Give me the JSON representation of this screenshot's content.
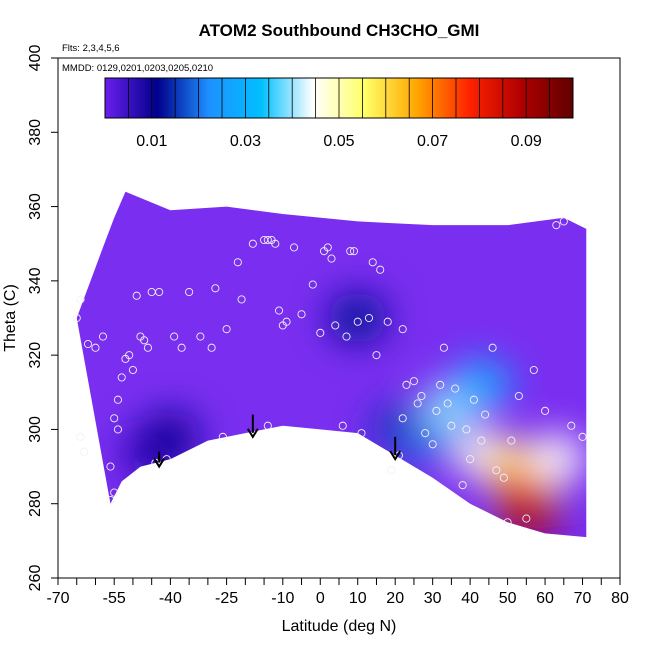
{
  "chart_data": {
    "type": "heatmap",
    "title": "ATOM2 Southbound CH3CHO_GMI",
    "flights_label": "Flts: 2,3,4,5,6",
    "dates_label": "MMDD: 0129,0201,0203,0205,0210",
    "xlabel": "Latitude (deg N)",
    "ylabel": "Theta (C)",
    "xlim": [
      -70,
      80
    ],
    "ylim": [
      260,
      400
    ],
    "x_ticks": [
      -70,
      -65,
      -60,
      -55,
      -50,
      -45,
      -40,
      -35,
      -30,
      -25,
      -20,
      -15,
      -10,
      -5,
      0,
      5,
      10,
      15,
      20,
      25,
      30,
      35,
      40,
      45,
      50,
      55,
      60,
      65,
      70,
      75,
      80
    ],
    "x_tick_labels": [
      "-70",
      "",
      "",
      "-55",
      "",
      "",
      "-40",
      "",
      "",
      "-25",
      "",
      "",
      "-10",
      "",
      "0",
      "",
      "10",
      "",
      "20",
      "",
      "30",
      "",
      "40",
      "",
      "50",
      "",
      "60",
      "",
      "70",
      "",
      "80"
    ],
    "y_ticks": [
      260,
      280,
      300,
      320,
      340,
      360,
      380,
      400
    ],
    "y_tick_labels": [
      "260",
      "280",
      "300",
      "320",
      "340",
      "360",
      "380",
      "400"
    ],
    "colorbar": {
      "range": [
        0,
        0.1
      ],
      "ticks": [
        0.01,
        0.03,
        0.05,
        0.07,
        0.09
      ],
      "tick_labels": [
        "0.01",
        "0.03",
        "0.05",
        "0.07",
        "0.09"
      ],
      "colors": [
        "#6a1fee",
        "#00008b",
        "#1e90ff",
        "#00bfff",
        "#ffffff",
        "#ffff66",
        "#ffa500",
        "#ff2200",
        "#b00000",
        "#600000"
      ]
    },
    "field": {
      "bg_color": "#7a2ff0",
      "blobs": [
        {
          "lat": -45,
          "theta": 293,
          "value": 0.007
        },
        {
          "lat": -40,
          "theta": 298,
          "value": 0.01
        },
        {
          "lat": 10,
          "theta": 330,
          "value": 0.012
        },
        {
          "lat": 22,
          "theta": 300,
          "value": 0.015
        },
        {
          "lat": 30,
          "theta": 298,
          "value": 0.02
        },
        {
          "lat": 35,
          "theta": 306,
          "value": 0.04
        },
        {
          "lat": 43,
          "theta": 312,
          "value": 0.03
        },
        {
          "lat": 44,
          "theta": 293,
          "value": 0.045
        },
        {
          "lat": 52,
          "theta": 290,
          "value": 0.06
        },
        {
          "lat": 55,
          "theta": 283,
          "value": 0.075
        },
        {
          "lat": 56,
          "theta": 278,
          "value": 0.088
        },
        {
          "lat": 63,
          "theta": 292,
          "value": 0.045
        }
      ]
    },
    "ground_profile": [
      {
        "lat": -56,
        "theta": 280
      },
      {
        "lat": -53,
        "theta": 286
      },
      {
        "lat": -48,
        "theta": 290
      },
      {
        "lat": -40,
        "theta": 292
      },
      {
        "lat": -30,
        "theta": 297
      },
      {
        "lat": -20,
        "theta": 299
      },
      {
        "lat": -10,
        "theta": 301
      },
      {
        "lat": 0,
        "theta": 300
      },
      {
        "lat": 10,
        "theta": 299
      },
      {
        "lat": 20,
        "theta": 293
      },
      {
        "lat": 30,
        "theta": 287
      },
      {
        "lat": 40,
        "theta": 280
      },
      {
        "lat": 50,
        "theta": 275
      },
      {
        "lat": 60,
        "theta": 272
      },
      {
        "lat": 71,
        "theta": 271
      }
    ],
    "top_profile": [
      {
        "lat": -65,
        "theta": 330
      },
      {
        "lat": -58,
        "theta": 349
      },
      {
        "lat": -55,
        "theta": 357
      },
      {
        "lat": -52,
        "theta": 364
      },
      {
        "lat": -40,
        "theta": 359
      },
      {
        "lat": -25,
        "theta": 360
      },
      {
        "lat": -10,
        "theta": 358
      },
      {
        "lat": 10,
        "theta": 356
      },
      {
        "lat": 30,
        "theta": 355
      },
      {
        "lat": 50,
        "theta": 355
      },
      {
        "lat": 65,
        "theta": 357
      },
      {
        "lat": 71,
        "theta": 354
      }
    ],
    "samples": [
      {
        "lat": -65,
        "theta": 330
      },
      {
        "lat": -64,
        "theta": 335
      },
      {
        "lat": -64,
        "theta": 298
      },
      {
        "lat": -63,
        "theta": 294
      },
      {
        "lat": -62,
        "theta": 323
      },
      {
        "lat": -60,
        "theta": 322
      },
      {
        "lat": -58,
        "theta": 325
      },
      {
        "lat": -56,
        "theta": 281
      },
      {
        "lat": -55,
        "theta": 283
      },
      {
        "lat": -56,
        "theta": 290
      },
      {
        "lat": -55,
        "theta": 303
      },
      {
        "lat": -54,
        "theta": 300
      },
      {
        "lat": -54,
        "theta": 308
      },
      {
        "lat": -53,
        "theta": 314
      },
      {
        "lat": -52,
        "theta": 319
      },
      {
        "lat": -51,
        "theta": 320
      },
      {
        "lat": -50,
        "theta": 316
      },
      {
        "lat": -49,
        "theta": 336
      },
      {
        "lat": -48,
        "theta": 325
      },
      {
        "lat": -47,
        "theta": 324
      },
      {
        "lat": -46,
        "theta": 322
      },
      {
        "lat": -45,
        "theta": 337
      },
      {
        "lat": -43,
        "theta": 337
      },
      {
        "lat": -44,
        "theta": 291
      },
      {
        "lat": -41,
        "theta": 292
      },
      {
        "lat": -39,
        "theta": 325
      },
      {
        "lat": -37,
        "theta": 322
      },
      {
        "lat": -35,
        "theta": 337
      },
      {
        "lat": -32,
        "theta": 325
      },
      {
        "lat": -29,
        "theta": 322
      },
      {
        "lat": -28,
        "theta": 338
      },
      {
        "lat": -26,
        "theta": 298
      },
      {
        "lat": -25,
        "theta": 327
      },
      {
        "lat": -22,
        "theta": 345
      },
      {
        "lat": -21,
        "theta": 335
      },
      {
        "lat": -18,
        "theta": 350
      },
      {
        "lat": -15,
        "theta": 351
      },
      {
        "lat": -14,
        "theta": 351
      },
      {
        "lat": -13,
        "theta": 351
      },
      {
        "lat": -12,
        "theta": 350
      },
      {
        "lat": -14,
        "theta": 301
      },
      {
        "lat": -10,
        "theta": 328
      },
      {
        "lat": -11,
        "theta": 332
      },
      {
        "lat": -9,
        "theta": 329
      },
      {
        "lat": -7,
        "theta": 349
      },
      {
        "lat": -5,
        "theta": 331
      },
      {
        "lat": -2,
        "theta": 339
      },
      {
        "lat": 0,
        "theta": 326
      },
      {
        "lat": 1,
        "theta": 348
      },
      {
        "lat": 2,
        "theta": 349
      },
      {
        "lat": 3,
        "theta": 346
      },
      {
        "lat": 4,
        "theta": 328
      },
      {
        "lat": 6,
        "theta": 301
      },
      {
        "lat": 7,
        "theta": 325
      },
      {
        "lat": 8,
        "theta": 348
      },
      {
        "lat": 9,
        "theta": 348
      },
      {
        "lat": 10,
        "theta": 329
      },
      {
        "lat": 11,
        "theta": 299
      },
      {
        "lat": 13,
        "theta": 330
      },
      {
        "lat": 14,
        "theta": 345
      },
      {
        "lat": 15,
        "theta": 320
      },
      {
        "lat": 16,
        "theta": 343
      },
      {
        "lat": 18,
        "theta": 329
      },
      {
        "lat": 19,
        "theta": 289
      },
      {
        "lat": 21,
        "theta": 293
      },
      {
        "lat": 22,
        "theta": 303
      },
      {
        "lat": 22,
        "theta": 327
      },
      {
        "lat": 23,
        "theta": 312
      },
      {
        "lat": 25,
        "theta": 313
      },
      {
        "lat": 26,
        "theta": 307
      },
      {
        "lat": 27,
        "theta": 309
      },
      {
        "lat": 28,
        "theta": 299
      },
      {
        "lat": 30,
        "theta": 296
      },
      {
        "lat": 31,
        "theta": 305
      },
      {
        "lat": 32,
        "theta": 312
      },
      {
        "lat": 33,
        "theta": 322
      },
      {
        "lat": 34,
        "theta": 307
      },
      {
        "lat": 35,
        "theta": 301
      },
      {
        "lat": 36,
        "theta": 311
      },
      {
        "lat": 38,
        "theta": 285
      },
      {
        "lat": 39,
        "theta": 300
      },
      {
        "lat": 40,
        "theta": 292
      },
      {
        "lat": 41,
        "theta": 308
      },
      {
        "lat": 43,
        "theta": 297
      },
      {
        "lat": 44,
        "theta": 304
      },
      {
        "lat": 46,
        "theta": 322
      },
      {
        "lat": 47,
        "theta": 289
      },
      {
        "lat": 49,
        "theta": 287
      },
      {
        "lat": 50,
        "theta": 275
      },
      {
        "lat": 51,
        "theta": 297
      },
      {
        "lat": 53,
        "theta": 309
      },
      {
        "lat": 55,
        "theta": 276
      },
      {
        "lat": 57,
        "theta": 316
      },
      {
        "lat": 60,
        "theta": 305
      },
      {
        "lat": 63,
        "theta": 355
      },
      {
        "lat": 65,
        "theta": 356
      },
      {
        "lat": 67,
        "theta": 301
      },
      {
        "lat": 70,
        "theta": 298
      }
    ],
    "arrows": [
      {
        "lat": -43,
        "theta_top": 294,
        "theta_bottom": 290
      },
      {
        "lat": -18,
        "theta_top": 304,
        "theta_bottom": 298
      },
      {
        "lat": 20,
        "theta_top": 298,
        "theta_bottom": 292
      }
    ]
  }
}
